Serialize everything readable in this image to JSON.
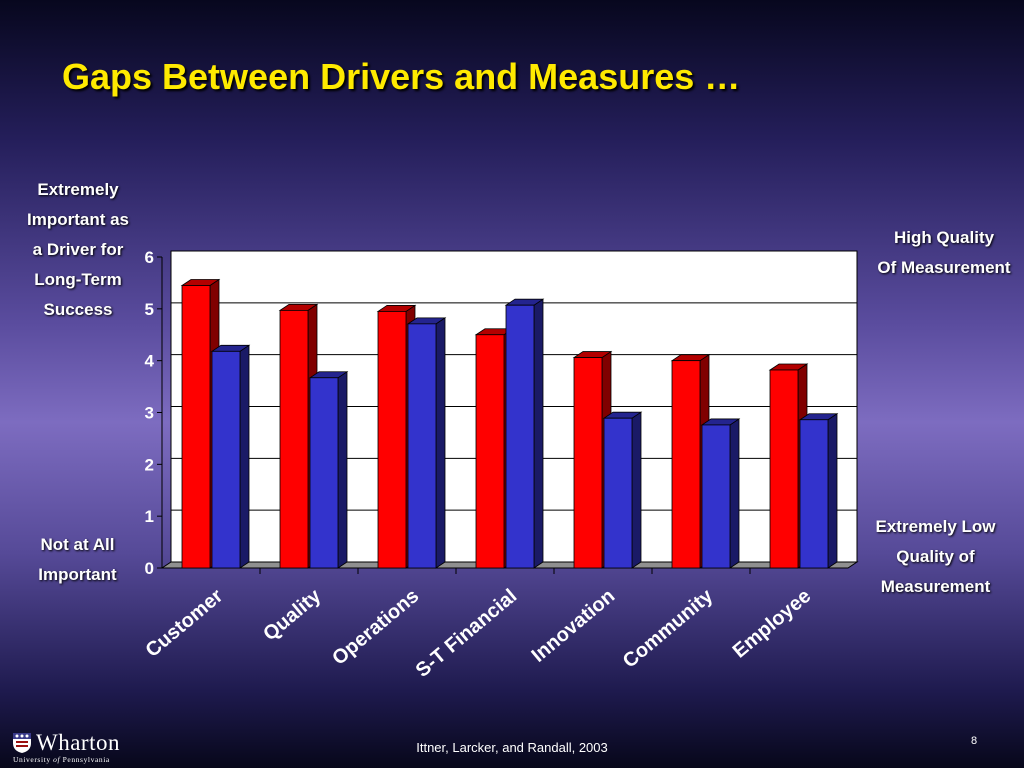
{
  "slide": {
    "title": "Gaps Between Drivers and Measures …",
    "footer": "Ittner, Larcker, and Randall, 2003",
    "page_number": "8"
  },
  "labels": {
    "left_top": [
      "Extremely",
      "Important as",
      "a Driver for",
      "Long-Term",
      "Success"
    ],
    "left_bottom": [
      "Not at All",
      "Important"
    ],
    "right_top": [
      "High Quality",
      "Of Measurement"
    ],
    "right_bottom": [
      "Extremely Low",
      "Quality of",
      "Measurement"
    ]
  },
  "logo": {
    "name": "Wharton",
    "sub_prefix": "University ",
    "sub_of": "of",
    "sub_suffix": " Pennsylvania"
  },
  "chart_data": {
    "type": "bar",
    "title": "",
    "categories": [
      "Customer",
      "Quality",
      "Operations",
      "S-T Financial",
      "Innovation",
      "Community",
      "Employee"
    ],
    "series": [
      {
        "color": "#ff0000",
        "values": [
          5.45,
          4.97,
          4.95,
          4.5,
          4.06,
          4.0,
          3.82
        ]
      },
      {
        "color": "#3333cc",
        "values": [
          4.18,
          3.67,
          4.71,
          5.07,
          2.89,
          2.76,
          2.86
        ]
      }
    ],
    "ylim": [
      0,
      6
    ],
    "yticks": [
      0,
      1,
      2,
      3,
      4,
      5,
      6
    ],
    "grid": true,
    "legend": "none"
  }
}
